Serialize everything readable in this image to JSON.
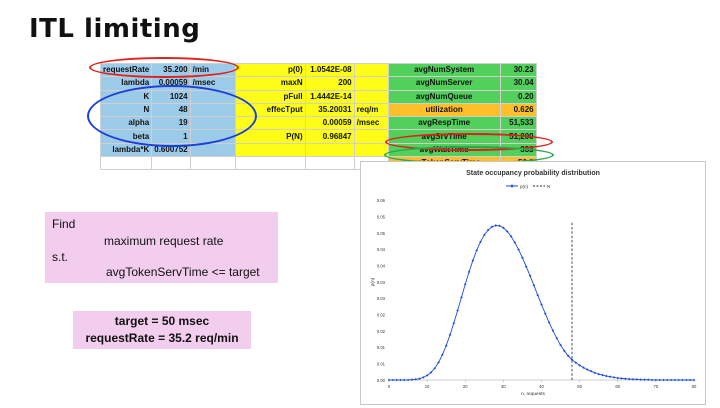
{
  "slide": {
    "title": "ITL limiting"
  },
  "spreadsheet": {
    "rows": [
      {
        "a_label": "requestRate",
        "a_value": "35.200",
        "a_unit": "/min",
        "b_label": "p(0)",
        "b_value": "1.0542E-08",
        "b_unit": "",
        "c_label": "avgNumSystem",
        "c_value": "30.23"
      },
      {
        "a_label": "lambda",
        "a_value": "0.00059",
        "a_unit": "/msec",
        "b_label": "maxN",
        "b_value": "200",
        "b_unit": "",
        "c_label": "avgNumServer",
        "c_value": "30.04"
      },
      {
        "a_label": "K",
        "a_value": "1024",
        "a_unit": "",
        "b_label": "pFull",
        "b_value": "1.4442E-14",
        "b_unit": "",
        "c_label": "avgNumQueue",
        "c_value": "0.20"
      },
      {
        "a_label": "N",
        "a_value": "48",
        "a_unit": "",
        "b_label": "effecTput",
        "b_value": "35.20031",
        "b_unit": "req/m",
        "c_label": "utilization",
        "c_value": "0.626"
      },
      {
        "a_label": "alpha",
        "a_value": "19",
        "a_unit": "",
        "b_label": "",
        "b_value": "0.00059",
        "b_unit": "/msec",
        "c_label": "avgRespTime",
        "c_value": "51,533"
      },
      {
        "a_label": "beta",
        "a_value": "1",
        "a_unit": "",
        "b_label": "P(N)",
        "b_value": "0.96847",
        "b_unit": "",
        "c_label": "avgSrvTime",
        "c_value": "51,200"
      },
      {
        "a_label": "lambda*K",
        "a_value": "0.600752",
        "a_unit": "",
        "b_label": "",
        "b_value": "",
        "b_unit": "",
        "c_label": "avgWaitTime",
        "c_value": "333"
      },
      {
        "a_label": "",
        "a_value": "",
        "a_unit": "",
        "b_label": "",
        "b_value": "",
        "b_unit": "",
        "c_label": "avgTokenServTime",
        "c_value": "50.0"
      }
    ],
    "colors": {
      "blue": "#9bcbe9",
      "yellow": "#fdfd18",
      "green": "#52d05c",
      "orange": "#ffbf2a"
    }
  },
  "annotations": {
    "red_oval_color": "#e0201a",
    "blue_oval_color": "#1c3fd8",
    "green_oval_color": "#2aa84a"
  },
  "find_box": {
    "line1": "Find",
    "line2": "maximum request rate",
    "line3": "s.t.",
    "line4": "avgTokenServTime <= target"
  },
  "target_box": {
    "line1": "target = 50 msec",
    "line2": "requestRate = 35.2 req/min"
  },
  "chart_data": {
    "type": "line",
    "title": "State occupancy probability distribution",
    "xlabel": "n, requests",
    "ylabel": "p(n)",
    "legend": {
      "placement": "top-center",
      "entries": [
        "p(n)",
        "N"
      ]
    },
    "xlim": [
      0,
      80
    ],
    "ylim": [
      0,
      0.06
    ],
    "x_ticks": [
      0,
      10,
      20,
      30,
      40,
      50,
      60,
      70,
      80
    ],
    "y_ticks": [
      0,
      0.005,
      0.01,
      0.015,
      0.02,
      0.025,
      0.03,
      0.035,
      0.04,
      0.045,
      0.05,
      0.055
    ],
    "x_tick_labels": [
      "0",
      "10",
      "20",
      "30",
      "40",
      "50",
      "60",
      "70",
      "80"
    ],
    "y_tick_labels": [
      "0.00",
      "0.01",
      "0.01",
      "0.02",
      "0.02",
      "0.03",
      "0.03",
      "0.04",
      "0.04",
      "0.05",
      "0.05",
      "0.06"
    ],
    "series": [
      {
        "name": "p(n)",
        "color": "#1f4fd8",
        "marker": "diamond",
        "x": [
          0,
          1,
          2,
          3,
          4,
          5,
          6,
          7,
          8,
          9,
          10,
          11,
          12,
          13,
          14,
          15,
          16,
          17,
          18,
          19,
          20,
          21,
          22,
          23,
          24,
          25,
          26,
          27,
          28,
          29,
          30,
          31,
          32,
          33,
          34,
          35,
          36,
          37,
          38,
          39,
          40,
          41,
          42,
          43,
          44,
          45,
          46,
          47,
          48,
          49,
          50,
          51,
          52,
          53,
          54,
          55,
          56,
          57,
          58,
          59,
          60,
          61,
          62,
          63,
          64,
          65,
          66,
          67,
          68,
          69,
          70,
          71,
          72,
          73,
          74,
          75,
          76,
          77,
          78,
          79,
          80
        ],
        "y": [
          0,
          0,
          0,
          0,
          0,
          0,
          0.0001,
          0.0002,
          0.0004,
          0.0008,
          0.0014,
          0.0023,
          0.0036,
          0.0054,
          0.0077,
          0.0105,
          0.0138,
          0.0174,
          0.0213,
          0.0253,
          0.0293,
          0.0331,
          0.0366,
          0.0397,
          0.0423,
          0.0444,
          0.0459,
          0.0469,
          0.0473,
          0.0472,
          0.0466,
          0.0455,
          0.044,
          0.0421,
          0.0399,
          0.0374,
          0.0347,
          0.0319,
          0.029,
          0.026,
          0.0231,
          0.0203,
          0.0176,
          0.0151,
          0.0128,
          0.0107,
          0.0089,
          0.0074,
          0.0062,
          0.0053,
          0.0045,
          0.0038,
          0.0032,
          0.0027,
          0.0022,
          0.0018,
          0.0015,
          0.0012,
          0.001,
          0.0008,
          0.0006,
          0.0005,
          0.0004,
          0.0003,
          0.0002,
          0.0002,
          0.0001,
          0.0001,
          0.0001,
          0,
          0,
          0,
          0,
          0,
          0,
          0,
          0,
          0,
          0,
          0,
          0
        ]
      },
      {
        "name": "N",
        "color": "#222222",
        "style": "dashed",
        "x_value": 48
      }
    ]
  }
}
